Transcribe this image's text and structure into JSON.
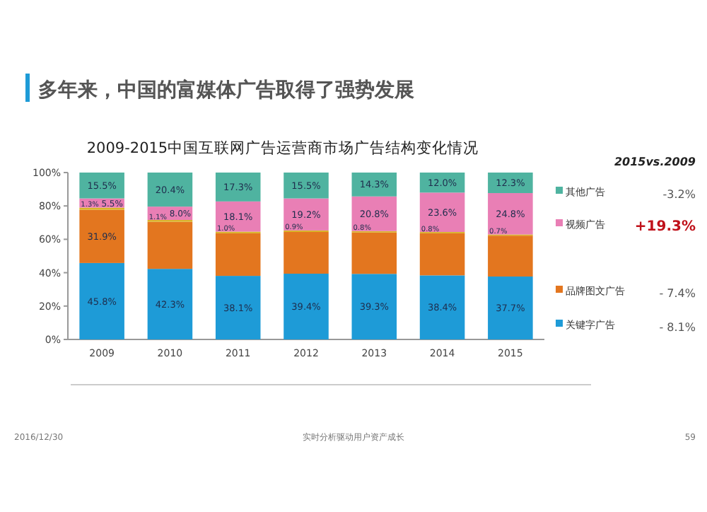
{
  "chart_data": {
    "type": "bar",
    "stacked": true,
    "title": "多年来，中国的富媒体广告取得了强势发展",
    "subtitle": "2009-2015中国互联网广告运营商市场广告结构变化情况",
    "categories": [
      "2009",
      "2010",
      "2011",
      "2012",
      "2013",
      "2014",
      "2015"
    ],
    "series": [
      {
        "name": "关键字广告",
        "color": "#1e9bd7",
        "values": [
          45.8,
          42.3,
          38.1,
          39.4,
          39.3,
          38.4,
          37.7
        ],
        "value_labels": [
          "45.8%",
          "42.3%",
          "38.1%",
          "39.4%",
          "39.3%",
          "38.4%",
          "37.7%"
        ]
      },
      {
        "name": "品牌图文广告",
        "color": "#e3761f",
        "values": [
          31.9,
          28.2,
          25.5,
          25.0,
          24.8,
          25.2,
          24.5
        ],
        "value_labels": [
          "31.9%",
          null,
          null,
          null,
          null,
          null,
          null
        ]
      },
      {
        "color": "#d9b42a",
        "values": [
          1.3,
          1.1,
          1.0,
          0.9,
          0.8,
          0.8,
          0.7
        ],
        "value_labels": [
          "1.3%",
          "1.1%",
          "1.0%",
          "0.9%",
          "0.8%",
          "0.8%",
          "0.7%"
        ]
      },
      {
        "name": "视频广告",
        "color": "#e97fb5",
        "values": [
          5.5,
          8.0,
          18.1,
          19.2,
          20.8,
          23.6,
          24.8
        ],
        "value_labels": [
          "5.5%",
          "8.0%",
          "18.1%",
          "19.2%",
          "20.8%",
          "23.6%",
          "24.8%"
        ]
      },
      {
        "name": "其他广告",
        "color": "#4fb3a0",
        "values": [
          15.5,
          20.4,
          17.3,
          15.5,
          14.3,
          12.0,
          12.3
        ],
        "value_labels": [
          "15.5%",
          "20.4%",
          "17.3%",
          "15.5%",
          "14.3%",
          "12.0%",
          "12.3%"
        ]
      }
    ],
    "ylim": [
      0,
      100
    ],
    "yticks": [
      {
        "value": 0,
        "label": "0%"
      },
      {
        "value": 20,
        "label": "20%"
      },
      {
        "value": 40,
        "label": "40%"
      },
      {
        "value": 60,
        "label": "60%"
      },
      {
        "value": 80,
        "label": "80%"
      },
      {
        "value": 100,
        "label": "100%"
      }
    ],
    "grid": false,
    "legend": "right",
    "annotations": [
      "2015vs.2009",
      "-3.2%",
      "+19.3%",
      "- 7.4%",
      "- 8.1%",
      "2016/12/30",
      "实时分析驱动用户资产成长",
      "59"
    ]
  }
}
